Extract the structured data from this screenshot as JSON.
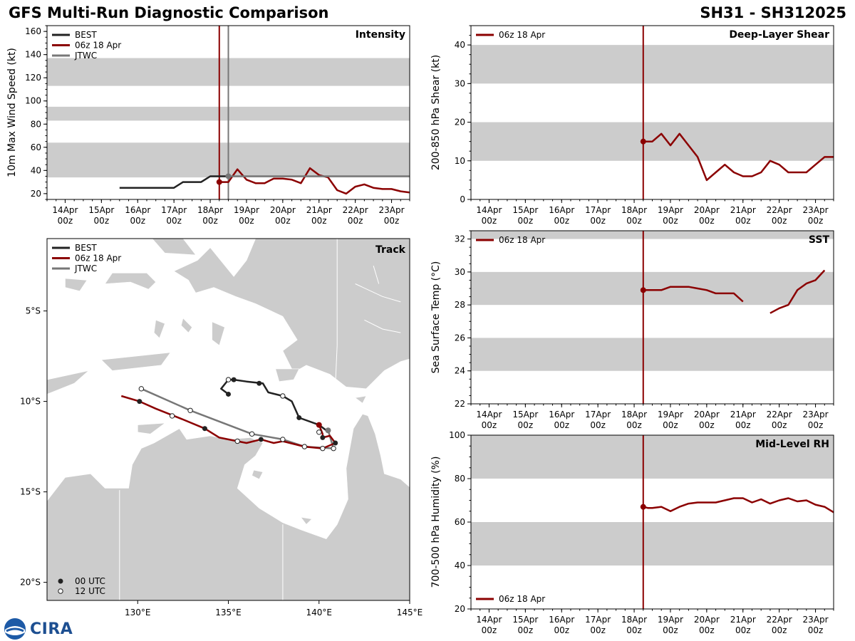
{
  "header": {
    "title": "GFS Multi-Run Diagnostic Comparison",
    "storm_id": "SH31 - SH312025"
  },
  "logo": {
    "name": "noaa-cira-logo",
    "text": "CIRA"
  },
  "colors": {
    "best": "#222222",
    "run": "#8b0000",
    "jtwc": "#777777",
    "band": "#cccccc",
    "land": "#cccccc",
    "axis": "#000000"
  },
  "time_axis": {
    "ticks": [
      {
        "day": "14Apr",
        "hour": "00z",
        "t": 0
      },
      {
        "day": "15Apr",
        "hour": "00z",
        "t": 24
      },
      {
        "day": "16Apr",
        "hour": "00z",
        "t": 48
      },
      {
        "day": "17Apr",
        "hour": "00z",
        "t": 72
      },
      {
        "day": "18Apr",
        "hour": "00z",
        "t": 96
      },
      {
        "day": "19Apr",
        "hour": "00z",
        "t": 120
      },
      {
        "day": "20Apr",
        "hour": "00z",
        "t": 144
      },
      {
        "day": "21Apr",
        "hour": "00z",
        "t": 168
      },
      {
        "day": "22Apr",
        "hour": "00z",
        "t": 192
      },
      {
        "day": "23Apr",
        "hour": "00z",
        "t": 216
      }
    ],
    "range_hours": [
      -12,
      228
    ],
    "units": "hours since 14Apr 00z"
  },
  "chart_data": [
    {
      "id": "intensity",
      "type": "line",
      "title": "Intensity",
      "ylabel": "10m Max Wind Speed (kt)",
      "ylim": [
        15,
        165
      ],
      "yticks": [
        20,
        40,
        60,
        80,
        100,
        120,
        140,
        160
      ],
      "bands": [
        [
          34,
          64
        ],
        [
          83,
          95
        ],
        [
          113,
          137
        ]
      ],
      "legend": [
        "BEST",
        "06z 18 Apr",
        "JTWC"
      ],
      "vlines": [
        {
          "t": 102,
          "series": "06z 18 Apr"
        },
        {
          "t": 108,
          "series": "JTWC"
        }
      ],
      "series": [
        {
          "name": "BEST",
          "t": [
            36,
            48,
            60,
            72,
            78,
            84,
            90,
            96,
            102,
            108
          ],
          "v": [
            25,
            25,
            25,
            25,
            30,
            30,
            30,
            35,
            35,
            35
          ]
        },
        {
          "name": "06z 18 Apr",
          "t": [
            102,
            108,
            114,
            120,
            126,
            132,
            138,
            144,
            150,
            156,
            162,
            168,
            174,
            180,
            186,
            192,
            198,
            204,
            210,
            216,
            222,
            228
          ],
          "v": [
            30,
            30,
            41,
            32,
            29,
            29,
            33,
            33,
            32,
            29,
            42,
            36,
            34,
            23,
            20,
            26,
            28,
            25,
            24,
            24,
            22,
            21
          ]
        },
        {
          "name": "JTWC",
          "t": [
            108,
            120,
            132,
            144,
            156,
            168,
            180,
            192,
            204,
            216,
            228
          ],
          "v": [
            35,
            35,
            35,
            35,
            35,
            35,
            35,
            35,
            35,
            35,
            35
          ]
        }
      ],
      "markers": [
        {
          "series": "06z 18 Apr",
          "t": 102,
          "v": 30
        },
        {
          "series": "JTWC",
          "t": 108,
          "v": 35
        }
      ]
    },
    {
      "id": "shear",
      "type": "line",
      "title": "Deep-Layer Shear",
      "ylabel": "200-850 hPa Shear (kt)",
      "ylim": [
        0,
        45
      ],
      "yticks": [
        0,
        10,
        20,
        30,
        40
      ],
      "bands": [
        [
          10,
          20
        ],
        [
          30,
          40
        ]
      ],
      "legend": [
        "06z 18 Apr"
      ],
      "vlines": [
        {
          "t": 102,
          "series": "06z 18 Apr"
        }
      ],
      "series": [
        {
          "name": "06z 18 Apr",
          "t": [
            102,
            108,
            114,
            120,
            126,
            132,
            138,
            144,
            150,
            156,
            162,
            168,
            174,
            180,
            186,
            192,
            198,
            204,
            210,
            216,
            222,
            228
          ],
          "v": [
            15,
            15,
            17,
            14,
            17,
            14,
            11,
            5,
            7,
            9,
            7,
            6,
            6,
            7,
            10,
            9,
            7,
            7,
            7,
            9,
            11,
            11
          ]
        }
      ],
      "markers": [
        {
          "series": "06z 18 Apr",
          "t": 102,
          "v": 15
        }
      ]
    },
    {
      "id": "sst",
      "type": "line",
      "title": "SST",
      "ylabel": "Sea Surface Temp (°C)",
      "ylim": [
        22,
        32.5
      ],
      "yticks": [
        22,
        24,
        26,
        28,
        30,
        32
      ],
      "bands": [
        [
          24,
          26
        ],
        [
          28,
          30
        ],
        [
          32,
          34
        ]
      ],
      "legend": [
        "06z 18 Apr"
      ],
      "vlines": [
        {
          "t": 102,
          "series": "06z 18 Apr"
        }
      ],
      "series": [
        {
          "name": "06z 18 Apr",
          "segments": [
            {
              "t": [
                102,
                108,
                114,
                120,
                126,
                132,
                138,
                144,
                150,
                156,
                162,
                168
              ],
              "v": [
                28.9,
                28.9,
                28.9,
                29.1,
                29.1,
                29.1,
                29.0,
                28.9,
                28.7,
                28.7,
                28.7,
                28.2
              ]
            },
            {
              "t": [
                186,
                192,
                198,
                204,
                210,
                216,
                222
              ],
              "v": [
                27.5,
                27.8,
                28.0,
                28.9,
                29.3,
                29.5,
                30.1
              ]
            }
          ]
        }
      ],
      "markers": [
        {
          "series": "06z 18 Apr",
          "t": 102,
          "v": 28.9
        }
      ]
    },
    {
      "id": "rh",
      "type": "line",
      "title": "Mid-Level RH",
      "ylabel": "700-500 hPa Humidity (%)",
      "ylim": [
        20,
        100
      ],
      "yticks": [
        20,
        40,
        60,
        80,
        100
      ],
      "bands": [
        [
          40,
          60
        ],
        [
          80,
          100
        ]
      ],
      "legend": [
        "06z 18 Apr"
      ],
      "legend_position": "bottom-left",
      "vlines": [
        {
          "t": 102,
          "series": "06z 18 Apr"
        }
      ],
      "series": [
        {
          "name": "06z 18 Apr",
          "t": [
            102,
            105,
            108,
            114,
            120,
            126,
            132,
            138,
            144,
            150,
            156,
            162,
            168,
            174,
            180,
            186,
            192,
            198,
            204,
            210,
            216,
            222,
            228
          ],
          "v": [
            67,
            66.5,
            66.5,
            67,
            65,
            67,
            68.5,
            69,
            69,
            69,
            70,
            71,
            71,
            69,
            70.5,
            68.5,
            70,
            71,
            69.5,
            70,
            68,
            67,
            64.5
          ]
        }
      ],
      "markers": [
        {
          "series": "06z 18 Apr",
          "t": 102,
          "v": 67
        }
      ]
    },
    {
      "id": "track",
      "type": "scatter",
      "title": "Track",
      "xlim": [
        125,
        145
      ],
      "ylim": [
        -21,
        -1
      ],
      "xticks": [
        {
          "v": 130,
          "label": "130°E"
        },
        {
          "v": 135,
          "label": "135°E"
        },
        {
          "v": 140,
          "label": "140°E"
        },
        {
          "v": 145,
          "label": "145°E"
        }
      ],
      "yticks": [
        {
          "v": -5,
          "label": "5°S"
        },
        {
          "v": -10,
          "label": "10°S"
        },
        {
          "v": -15,
          "label": "15°S"
        },
        {
          "v": -20,
          "label": "20°S"
        }
      ],
      "legend": [
        "BEST",
        "06z 18 Apr",
        "JTWC"
      ],
      "marker_legend": [
        "00 UTC",
        "12 UTC"
      ],
      "series": [
        {
          "name": "BEST",
          "points": [
            [
              140.4,
              -11.6
            ],
            [
              140.0,
              -11.3
            ],
            [
              138.9,
              -10.9
            ],
            [
              138.5,
              -10.0
            ],
            [
              138.0,
              -9.7
            ],
            [
              137.2,
              -9.5
            ],
            [
              136.9,
              -9.0
            ],
            [
              136.0,
              -8.9
            ],
            [
              135.3,
              -8.8
            ],
            [
              135.0,
              -8.8
            ],
            [
              134.6,
              -9.3
            ],
            [
              135.0,
              -9.6
            ]
          ],
          "points_00": [
            [
              138.9,
              -10.9
            ],
            [
              136.7,
              -9.0
            ],
            [
              135.0,
              -9.6
            ]
          ],
          "points_12": [
            [
              138.0,
              -9.7
            ],
            [
              135.0,
              -8.8
            ]
          ],
          "points_06": [
            [
              135.3,
              -8.8
            ]
          ]
        },
        {
          "name": "06z 18 Apr",
          "points": [
            [
              140.0,
              -11.3
            ],
            [
              140.2,
              -11.8
            ],
            [
              140.2,
              -12.0
            ],
            [
              140.6,
              -11.9
            ],
            [
              140.9,
              -12.3
            ],
            [
              140.2,
              -12.6
            ],
            [
              139.2,
              -12.5
            ],
            [
              138.0,
              -12.2
            ],
            [
              137.5,
              -12.3
            ],
            [
              136.8,
              -12.1
            ],
            [
              136.0,
              -12.3
            ],
            [
              135.5,
              -12.2
            ],
            [
              134.5,
              -12.0
            ],
            [
              133.7,
              -11.5
            ],
            [
              132.5,
              -11.0
            ],
            [
              131.0,
              -10.4
            ],
            [
              130.1,
              -10.0
            ],
            [
              129.1,
              -9.7
            ]
          ],
          "points_00": [
            [
              140.2,
              -12.0
            ],
            [
              140.9,
              -12.3
            ],
            [
              136.8,
              -12.1
            ],
            [
              133.7,
              -11.5
            ],
            [
              130.1,
              -10.0
            ]
          ],
          "points_12": [
            [
              140.0,
              -11.7
            ],
            [
              140.2,
              -12.6
            ],
            [
              135.5,
              -12.2
            ]
          ],
          "start": [
            140.0,
            -11.3
          ]
        },
        {
          "name": "JTWC",
          "points": [
            [
              140.5,
              -11.6
            ],
            [
              140.8,
              -12.6
            ],
            [
              139.2,
              -12.5
            ],
            [
              138.0,
              -12.1
            ],
            [
              136.3,
              -11.8
            ],
            [
              132.9,
              -10.5
            ],
            [
              130.2,
              -9.3
            ]
          ],
          "points_12": [
            [
              140.8,
              -12.6
            ],
            [
              139.2,
              -12.5
            ],
            [
              138.0,
              -12.1
            ],
            [
              136.3,
              -11.8
            ],
            [
              132.9,
              -10.5
            ],
            [
              130.2,
              -9.3
            ],
            [
              131.9,
              -10.8
            ]
          ],
          "start": [
            140.5,
            -11.6
          ]
        }
      ]
    }
  ]
}
